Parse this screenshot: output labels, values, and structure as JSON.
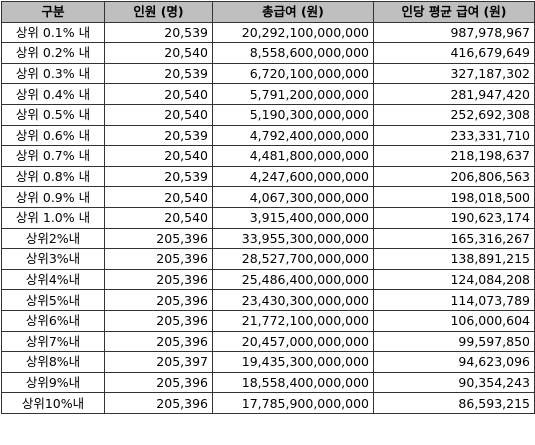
{
  "table": {
    "headers": [
      "구분",
      "인원 (명)",
      "총급여 (원)",
      "인당 평균 급여 (원)"
    ],
    "rows": [
      [
        "상위 0.1% 내",
        "20,539",
        "20,292,100,000,000",
        "987,978,967"
      ],
      [
        "상위 0.2% 내",
        "20,540",
        "8,558,600,000,000",
        "416,679,649"
      ],
      [
        "상위 0.3% 내",
        "20,539",
        "6,720,100,000,000",
        "327,187,302"
      ],
      [
        "상위 0.4% 내",
        "20,540",
        "5,791,200,000,000",
        "281,947,420"
      ],
      [
        "상위 0.5% 내",
        "20,540",
        "5,190,300,000,000",
        "252,692,308"
      ],
      [
        "상위 0.6% 내",
        "20,539",
        "4,792,400,000,000",
        "233,331,710"
      ],
      [
        "상위 0.7% 내",
        "20,540",
        "4,481,800,000,000",
        "218,198,637"
      ],
      [
        "상위 0.8% 내",
        "20,539",
        "4,247,600,000,000",
        "206,806,563"
      ],
      [
        "상위 0.9% 내",
        "20,540",
        "4,067,300,000,000",
        "198,018,500"
      ],
      [
        "상위 1.0% 내",
        "20,540",
        "3,915,400,000,000",
        "190,623,174"
      ],
      [
        "상위2%내",
        "205,396",
        "33,955,300,000,000",
        "165,316,267"
      ],
      [
        "상위3%내",
        "205,396",
        "28,527,700,000,000",
        "138,891,215"
      ],
      [
        "상위4%내",
        "205,396",
        "25,486,400,000,000",
        "124,084,208"
      ],
      [
        "상위5%내",
        "205,396",
        "23,430,300,000,000",
        "114,073,789"
      ],
      [
        "상위6%내",
        "205,396",
        "21,772,100,000,000",
        "106,000,604"
      ],
      [
        "상위7%내",
        "205,396",
        "20,457,000,000,000",
        "99,597,850"
      ],
      [
        "상위8%내",
        "205,397",
        "19,435,300,000,000",
        "94,623,096"
      ],
      [
        "상위9%내",
        "205,396",
        "18,558,400,000,000",
        "90,354,243"
      ],
      [
        "상위10%내",
        "205,396",
        "17,785,900,000,000",
        "86,593,215"
      ]
    ]
  }
}
